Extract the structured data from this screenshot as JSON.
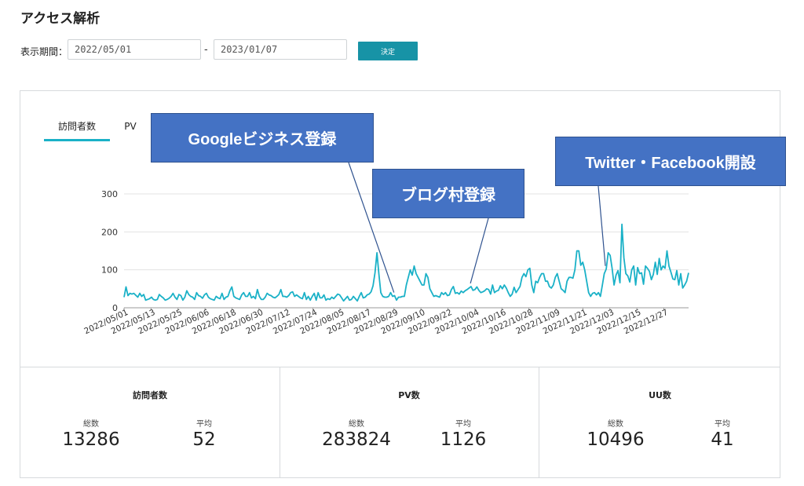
{
  "header": {
    "title": "アクセス解析"
  },
  "filter": {
    "period_label": "表示期間：",
    "start": "2022/05/01",
    "end": "2023/01/07",
    "separator": "-",
    "submit_label": "決定"
  },
  "tabs": [
    {
      "label": "訪問者数",
      "active": true
    },
    {
      "label": "PV",
      "active": false
    }
  ],
  "annotations": [
    {
      "text": "Googleビジネス登録",
      "target_date": "2022/08/29"
    },
    {
      "text": "ブログ村登録",
      "target_date": "2022/10/02"
    },
    {
      "text": "Twitter・Facebook開設",
      "target_date": "2022/12/01"
    }
  ],
  "colors": {
    "line": "#1ab1c7",
    "accent": "#1793a6",
    "annotation_bg": "#4472c4"
  },
  "chart_data": {
    "type": "line",
    "grid": true,
    "ylim": [
      0,
      300
    ],
    "yticks": [
      0,
      100,
      200,
      300
    ],
    "x_start": "2022-05-01",
    "x_end": "2023-01-07",
    "xticks": [
      "2022/05/01",
      "2022/05/13",
      "2022/05/25",
      "2022/06/06",
      "2022/06/18",
      "2022/06/30",
      "2022/07/12",
      "2022/07/24",
      "2022/08/05",
      "2022/08/17",
      "2022/08/29",
      "2022/09/10",
      "2022/09/22",
      "2022/10/04",
      "2022/10/16",
      "2022/10/28",
      "2022/11/09",
      "2022/11/21",
      "2022/12/03",
      "2022/12/15",
      "2022/12/27"
    ],
    "series": [
      {
        "values": [
          28,
          55,
          32,
          38,
          36,
          38,
          33,
          28,
          38,
          30,
          35,
          20,
          22,
          24,
          28,
          22,
          20,
          22,
          35,
          30,
          26,
          20,
          22,
          25,
          30,
          38,
          28,
          22,
          35,
          32,
          20,
          28,
          45,
          35,
          30,
          28,
          22,
          40,
          32,
          30,
          25,
          34,
          38,
          28,
          24,
          22,
          20,
          30,
          26,
          24,
          38,
          22,
          28,
          30,
          45,
          55,
          30,
          26,
          24,
          22,
          34,
          40,
          30,
          30,
          40,
          26,
          30,
          24,
          48,
          30,
          22,
          22,
          28,
          38,
          34,
          32,
          28,
          26,
          30,
          35,
          48,
          30,
          30,
          28,
          32,
          40,
          42,
          30,
          34,
          30,
          26,
          24,
          40,
          22,
          30,
          20,
          30,
          38,
          20,
          40,
          26,
          26,
          34,
          20,
          24,
          22,
          28,
          24,
          30,
          36,
          34,
          26,
          18,
          24,
          30,
          20,
          22,
          30,
          24,
          18,
          30,
          40,
          26,
          28,
          34,
          36,
          42,
          58,
          92,
          145,
          90,
          40,
          30,
          28,
          28,
          30,
          40,
          30,
          32,
          20,
          28,
          28,
          30,
          30,
          60,
          80,
          100,
          86,
          110,
          90,
          80,
          70,
          60,
          60,
          90,
          80,
          50,
          40,
          30,
          32,
          30,
          28,
          40,
          35,
          40,
          32,
          34,
          48,
          56,
          38,
          40,
          36,
          44,
          40,
          45,
          48,
          52,
          56,
          46,
          48,
          55,
          46,
          40,
          42,
          45,
          50,
          48,
          36,
          60,
          40,
          44,
          46,
          58,
          50,
          60,
          52,
          40,
          30,
          36,
          54,
          40,
          48,
          56,
          80,
          90,
          82,
          100,
          104,
          60,
          40,
          70,
          66,
          80,
          90,
          90,
          70,
          70,
          56,
          52,
          60,
          80,
          90,
          70,
          50,
          46,
          40,
          70,
          80,
          80,
          78,
          100,
          150,
          150,
          112,
          120,
          100,
          70,
          40,
          30,
          38,
          40,
          34,
          40,
          30,
          60,
          90,
          102,
          145,
          138,
          104,
          60,
          86,
          98,
          66,
          220,
          132,
          90,
          84,
          68,
          100,
          110,
          60,
          106,
          90,
          92,
          62,
          110,
          104,
          96,
          74,
          88,
          120,
          88,
          130,
          100,
          110,
          104,
          150,
          110,
          94,
          76,
          74,
          98,
          60,
          90,
          52,
          60,
          70,
          92
        ]
      }
    ]
  },
  "stats": [
    {
      "title": "訪問者数",
      "total_label": "総数",
      "total": "13286",
      "avg_label": "平均",
      "avg": "52"
    },
    {
      "title": "PV数",
      "total_label": "総数",
      "total": "283824",
      "avg_label": "平均",
      "avg": "1126"
    },
    {
      "title": "UU数",
      "total_label": "総数",
      "total": "10496",
      "avg_label": "平均",
      "avg": "41"
    }
  ]
}
